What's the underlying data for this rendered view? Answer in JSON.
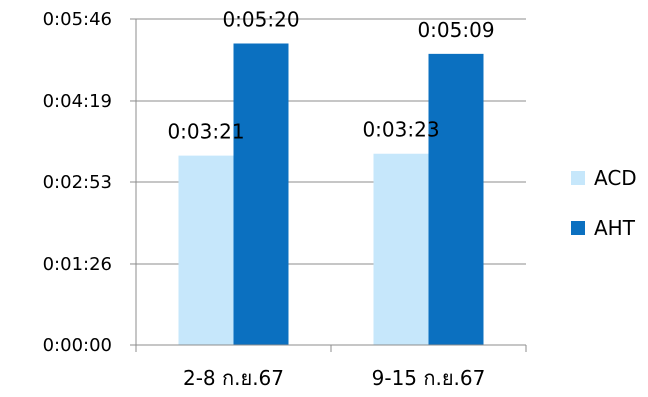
{
  "chart_data": {
    "type": "bar",
    "title": "",
    "xlabel": "",
    "ylabel": "",
    "categories": [
      "2-8 ก.ย.67",
      "9-15 ก.ย.67"
    ],
    "y_ticks": [
      {
        "label": "0:00:00",
        "seconds": 0
      },
      {
        "label": "0:01:26",
        "seconds": 86
      },
      {
        "label": "0:02:53",
        "seconds": 173
      },
      {
        "label": "0:04:19",
        "seconds": 259
      },
      {
        "label": "0:05:46",
        "seconds": 346
      }
    ],
    "ylim": [
      0,
      346
    ],
    "grid": true,
    "legend_position": "right",
    "series": [
      {
        "name": "ACD",
        "color": "#C6E7FB",
        "values": [
          201,
          203
        ],
        "labels": [
          "0:03:21",
          "0:03:23"
        ]
      },
      {
        "name": "AHT",
        "color": "#0B70C0",
        "values": [
          320,
          309
        ],
        "labels": [
          "0:05:20",
          "0:05:09"
        ]
      }
    ]
  }
}
